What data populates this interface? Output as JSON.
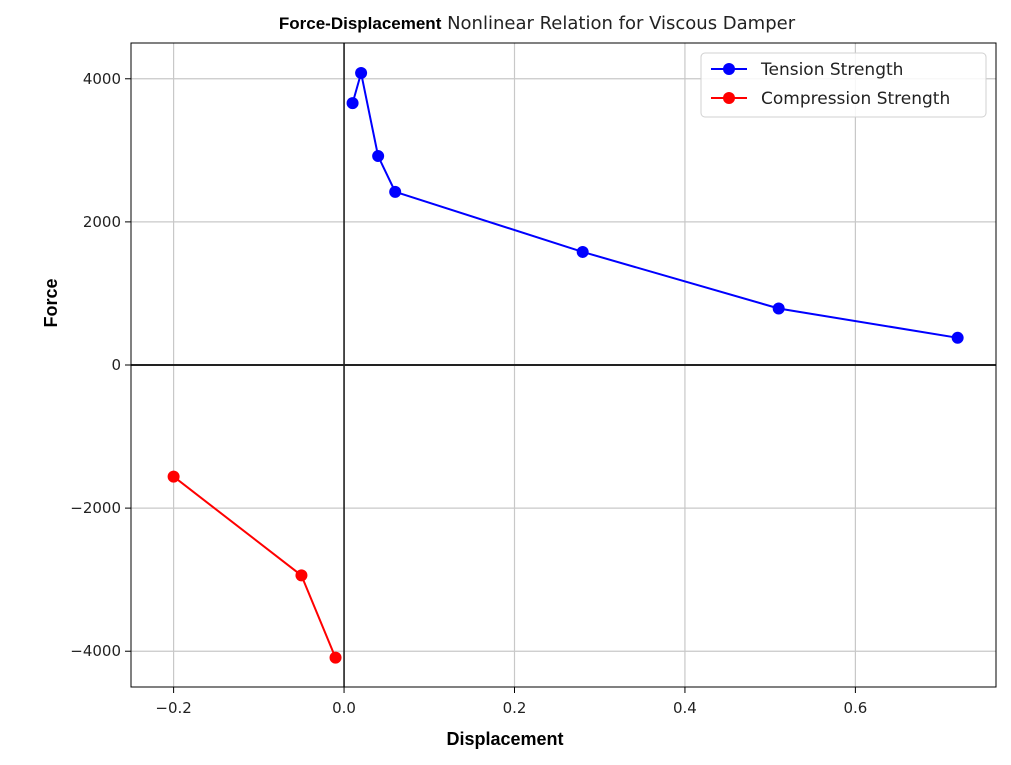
{
  "chart_data": {
    "type": "line",
    "title_bold": "Force-Displacement",
    "title_rest": " Nonlinear Relation for Viscous Damper",
    "xlabel": "Displacement",
    "ylabel": "Force",
    "xlim": [
      -0.25,
      0.765
    ],
    "ylim": [
      -4500,
      4500
    ],
    "x_ticks": [
      -0.2,
      0.0,
      0.2,
      0.4,
      0.6
    ],
    "x_tick_labels": [
      "−0.2",
      "0.0",
      "0.2",
      "0.4",
      "0.6"
    ],
    "y_ticks": [
      -4000,
      -2000,
      0,
      2000,
      4000
    ],
    "y_tick_labels": [
      "−4000",
      "−2000",
      "0",
      "2000",
      "4000"
    ],
    "grid": true,
    "legend_position": "top-right",
    "series": [
      {
        "name": "Tension Strength",
        "color": "#0000ff",
        "x": [
          0.01,
          0.02,
          0.04,
          0.06,
          0.28,
          0.51,
          0.72
        ],
        "y": [
          3660,
          4080,
          2920,
          2420,
          1580,
          790,
          380
        ]
      },
      {
        "name": "Compression Strength",
        "color": "#ff0000",
        "x": [
          -0.2,
          -0.05,
          -0.01
        ],
        "y": [
          -1560,
          -2940,
          -4090
        ]
      }
    ]
  }
}
